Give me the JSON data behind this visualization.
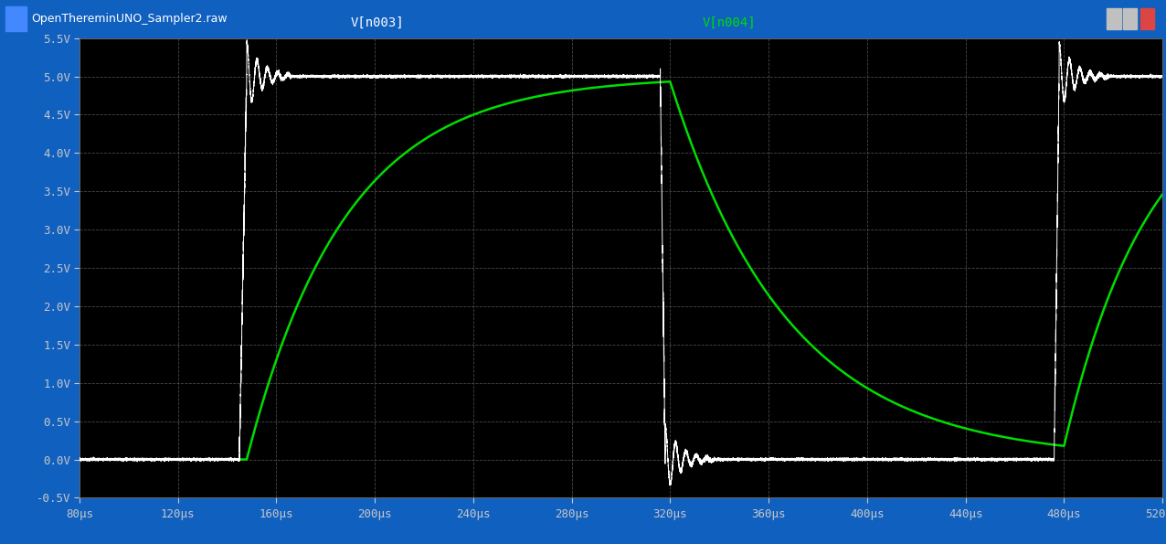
{
  "title": "OpenThereminUNO_Sampler2.raw",
  "label_white": "V[n003]",
  "label_green": "V[n004]",
  "background_color": "#000000",
  "plot_bg_color": "#000000",
  "title_bar_color": "#1a1aaa",
  "title_text_color": "#ffffff",
  "grid_color": "#484848",
  "axis_color": "#c8c8c8",
  "white_color": "#ffffff",
  "green_color": "#00dd00",
  "xmin": 80,
  "xmax": 520,
  "ymin": -0.5,
  "ymax": 5.5,
  "x_ticks": [
    80,
    120,
    160,
    200,
    240,
    280,
    320,
    360,
    400,
    440,
    480,
    520
  ],
  "y_ticks": [
    -0.5,
    0.0,
    0.5,
    1.0,
    1.5,
    2.0,
    2.5,
    3.0,
    3.5,
    4.0,
    4.5,
    5.0,
    5.5
  ],
  "x_tick_labels": [
    "80μs",
    "120μs",
    "160μs",
    "200μs",
    "240μs",
    "280μs",
    "320μs",
    "360μs",
    "400μs",
    "440μs",
    "480μs",
    "520μs"
  ],
  "y_tick_labels": [
    "-0.5V",
    "0.0V",
    "0.5V",
    "1.0V",
    "1.5V",
    "2.0V",
    "2.5V",
    "3.0V",
    "3.5V",
    "4.0V",
    "4.5V",
    "5.0V",
    "5.5V"
  ],
  "white_rise1": 148,
  "white_fall1": 318,
  "white_rise2": 478,
  "osc_period": 4.2,
  "osc_damp_tau": 6.0,
  "osc_amplitude": 0.45,
  "green_rise_start": 148,
  "green_rise_tau": 40.0,
  "green_peak": 5.0,
  "green_fall_start": 320,
  "green_fall_tau": 48.0,
  "green_rise2_start": 480,
  "green_rise2_tau": 35.0
}
